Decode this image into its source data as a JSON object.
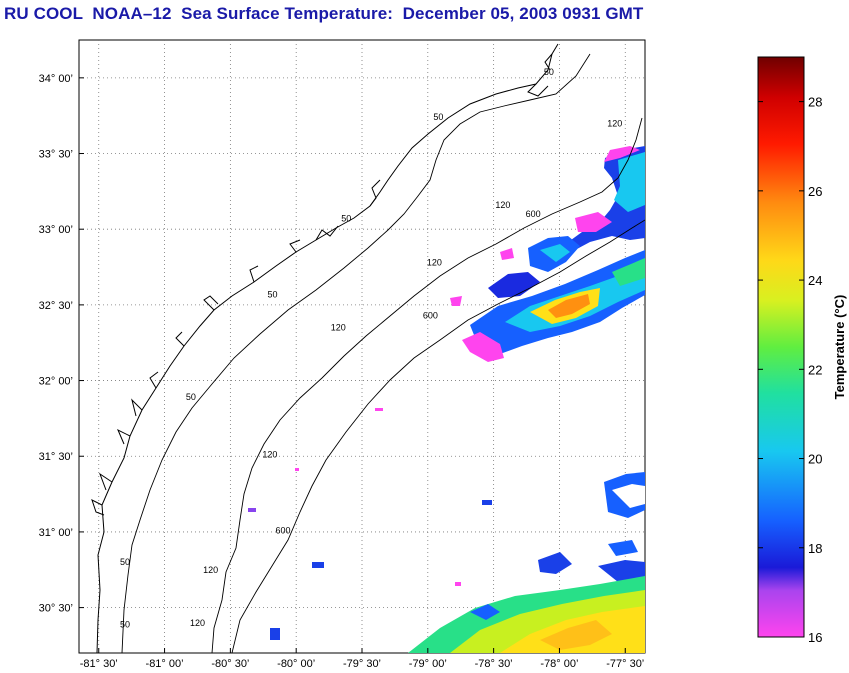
{
  "title": "RU COOL  NOAA–12  Sea Surface Temperature:  December 05, 2003 0931 GMT",
  "map": {
    "lon_range": [
      -81.65,
      -77.35
    ],
    "lat_range": [
      30.2,
      34.25
    ],
    "lon_ticks": [
      {
        "value": -81.5,
        "label": "-81° 30’"
      },
      {
        "value": -81.0,
        "label": "-81° 00’"
      },
      {
        "value": -80.5,
        "label": "-80° 30’"
      },
      {
        "value": -80.0,
        "label": "-80° 00’"
      },
      {
        "value": -79.5,
        "label": "-79° 30’"
      },
      {
        "value": -79.0,
        "label": "-79° 00’"
      },
      {
        "value": -78.5,
        "label": "-78° 30’"
      },
      {
        "value": -78.0,
        "label": "-78° 00’"
      },
      {
        "value": -77.5,
        "label": "-77° 30’"
      }
    ],
    "lat_ticks": [
      {
        "value": 34.0,
        "label": "34° 00’"
      },
      {
        "value": 33.5,
        "label": "33° 30’"
      },
      {
        "value": 33.0,
        "label": "33° 00’"
      },
      {
        "value": 32.5,
        "label": "32° 30’"
      },
      {
        "value": 32.0,
        "label": "32° 00’"
      },
      {
        "value": 31.5,
        "label": "31° 30’"
      },
      {
        "value": 31.0,
        "label": "31° 00’"
      },
      {
        "value": 30.5,
        "label": "30° 30’"
      }
    ],
    "grid": "dotted",
    "contour_labels": [
      {
        "text": "50",
        "lon": -78.08,
        "lat": 34.02
      },
      {
        "text": "50",
        "lon": -78.92,
        "lat": 33.72
      },
      {
        "text": "120",
        "lon": -77.58,
        "lat": 33.68
      },
      {
        "text": "120",
        "lon": -78.43,
        "lat": 33.14
      },
      {
        "text": "600",
        "lon": -78.2,
        "lat": 33.08
      },
      {
        "text": "50",
        "lon": -79.62,
        "lat": 33.05
      },
      {
        "text": "120",
        "lon": -78.95,
        "lat": 32.76
      },
      {
        "text": "600",
        "lon": -78.98,
        "lat": 32.41
      },
      {
        "text": "50",
        "lon": -80.18,
        "lat": 32.55
      },
      {
        "text": "120",
        "lon": -79.68,
        "lat": 32.33
      },
      {
        "text": "50",
        "lon": -80.8,
        "lat": 31.87
      },
      {
        "text": "120",
        "lon": -80.2,
        "lat": 31.49
      },
      {
        "text": "600",
        "lon": -80.1,
        "lat": 30.99
      },
      {
        "text": "120",
        "lon": -80.65,
        "lat": 30.73
      },
      {
        "text": "50",
        "lon": -81.3,
        "lat": 30.78
      },
      {
        "text": "120",
        "lon": -80.75,
        "lat": 30.38
      },
      {
        "text": "50",
        "lon": -81.3,
        "lat": 30.37
      }
    ]
  },
  "colorbar": {
    "label": "Temperature (°C)",
    "min": 16,
    "max": 29,
    "ticks": [
      16,
      18,
      20,
      22,
      24,
      26,
      28
    ],
    "colors": [
      "#ff44ee",
      "#8844ee",
      "#1a2ae0",
      "#1670ff",
      "#18d8f0",
      "#28e088",
      "#c8f020",
      "#ffe018",
      "#ff9010",
      "#ff2a00",
      "#d80000",
      "#7a0000"
    ]
  }
}
